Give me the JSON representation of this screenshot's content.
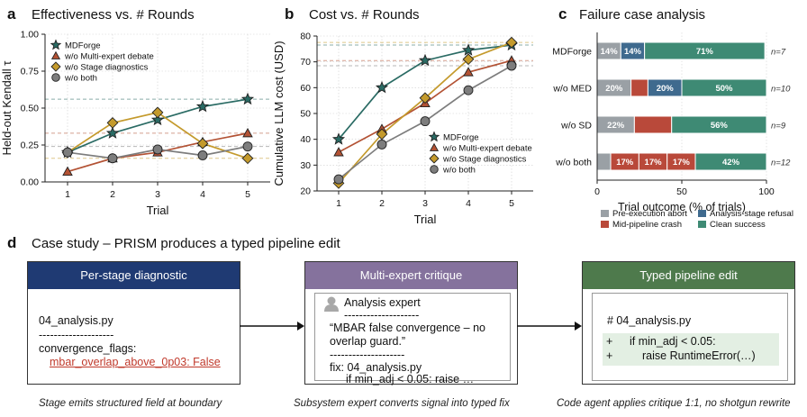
{
  "panel_labels": [
    "a",
    "b",
    "c",
    "d"
  ],
  "titles": {
    "a": "Effectiveness vs. # Rounds",
    "b": "Cost vs. # Rounds",
    "c": "Failure case analysis",
    "d": "Case study – PRISM produces a typed pipeline edit"
  },
  "colors": {
    "mdforge": "#2a6b64",
    "multi": "#b35234",
    "stage": "#c49a2c",
    "both": "#7d7d7d",
    "pre_abort": "#9aa0a5",
    "mid_crash": "#b9493a",
    "analysis_refusal": "#3f6a8e",
    "clean_success": "#3e8a74",
    "header_a": "#1f3a73",
    "header_b": "#85729d",
    "header_c": "#4e7a4c"
  },
  "chart_data": [
    {
      "type": "line",
      "title": "Effectiveness vs. # Rounds",
      "xlabel": "Trial",
      "ylabel": "Held-out Kendall τ",
      "x": [
        1,
        2,
        3,
        4,
        5
      ],
      "x_ticks": [
        "1",
        "2",
        "3",
        "4",
        "5"
      ],
      "ylim": [
        0,
        1.0
      ],
      "y_ticks": [
        "0.00",
        "0.25",
        "0.50",
        "0.75",
        "1.00"
      ],
      "grid": true,
      "legend": "top-left",
      "series": [
        {
          "name": "MDForge",
          "values": [
            0.2,
            0.33,
            0.42,
            0.51,
            0.56
          ],
          "marker": "star",
          "color": "#2a6b64",
          "ref": 0.56
        },
        {
          "name": "w/o Multi-expert debate",
          "values": [
            0.07,
            0.16,
            0.2,
            0.27,
            0.33
          ],
          "marker": "triangle",
          "color": "#b35234",
          "ref": 0.33
        },
        {
          "name": "w/o Stage diagnostics",
          "values": [
            0.2,
            0.4,
            0.47,
            0.26,
            0.16
          ],
          "marker": "diamond",
          "color": "#c49a2c",
          "ref": 0.16
        },
        {
          "name": "w/o both",
          "values": [
            0.2,
            0.16,
            0.22,
            0.18,
            0.24
          ],
          "marker": "circle",
          "color": "#7d7d7d",
          "ref": 0.24
        }
      ]
    },
    {
      "type": "line",
      "title": "Cost vs. # Rounds",
      "xlabel": "Trial",
      "ylabel": "Cumulative LLM cost (USD)",
      "x": [
        1,
        2,
        3,
        4,
        5
      ],
      "x_ticks": [
        "1",
        "2",
        "3",
        "4",
        "5"
      ],
      "ylim": [
        20,
        80
      ],
      "y_ticks": [
        "20",
        "30",
        "40",
        "50",
        "60",
        "70",
        "80"
      ],
      "grid": true,
      "legend": "bottom-right",
      "series": [
        {
          "name": "MDForge",
          "values": [
            40,
            60,
            70.5,
            74.5,
            76.5
          ],
          "marker": "star",
          "color": "#2a6b64",
          "ref": 76.5
        },
        {
          "name": "w/o Multi-expert debate",
          "values": [
            35,
            44,
            54,
            66,
            70.5
          ],
          "marker": "triangle",
          "color": "#b35234",
          "ref": 70.5
        },
        {
          "name": "w/o Stage diagnostics",
          "values": [
            23,
            42,
            56,
            71,
            77.5
          ],
          "marker": "diamond",
          "color": "#c49a2c",
          "ref": 77.5
        },
        {
          "name": "w/o both",
          "values": [
            24.5,
            38,
            47,
            59,
            68.5
          ],
          "marker": "circle",
          "color": "#7d7d7d",
          "ref": 68.5
        }
      ]
    },
    {
      "type": "bar",
      "orientation": "horizontal-stacked",
      "title": "Failure case analysis",
      "xlabel": "Trial outcome  (% of trials)",
      "xlim": [
        0,
        100
      ],
      "x_ticks": [
        "0",
        "50",
        "100"
      ],
      "categories": [
        "MDForge",
        "w/o MED",
        "w/o SD",
        "w/o both"
      ],
      "n_labels": [
        "n=7",
        "n=10",
        "n=9",
        "n=12"
      ],
      "legend": "bottom",
      "series": [
        {
          "name": "Pre-execution abort",
          "values": [
            14,
            20,
            22,
            8
          ],
          "labels": [
            "14%",
            "20%",
            "22%",
            ""
          ],
          "color": "#9aa0a5"
        },
        {
          "name": "Mid-pipeline crash",
          "values": [
            0,
            10,
            22,
            50
          ],
          "labels": [
            "",
            "",
            "",
            "17%|17%|17%"
          ],
          "color": "#b9493a"
        },
        {
          "name": "Analysis-stage refusal",
          "values": [
            14,
            20,
            0,
            0
          ],
          "labels": [
            "14%",
            "20%",
            "",
            ""
          ],
          "color": "#3f6a8e"
        },
        {
          "name": "Clean success",
          "values": [
            71,
            50,
            56,
            42
          ],
          "labels": [
            "71%",
            "50%",
            "56%",
            "42%"
          ],
          "color": "#3e8a74"
        }
      ]
    }
  ],
  "case_study": {
    "box1": {
      "header": "Per-stage diagnostic",
      "line1": "04_analysis.py",
      "divider": "--------------------",
      "line2": "convergence_flags:",
      "flag": "mbar_overlap_above_0p03: False",
      "caption": "Stage emits structured field at boundary"
    },
    "box2": {
      "header": "Multi-expert critique",
      "expert": "Analysis expert",
      "divider1": "--------------------",
      "quote1": "“MBAR false convergence – no",
      "quote2": "overlap guard.”",
      "divider2": "--------------------",
      "fix1": "fix: 04_analysis.py",
      "fix2": "if min_adj < 0.05: raise …",
      "caption": "Subsystem expert converts signal into typed fix"
    },
    "box3": {
      "header": "Typed pipeline edit",
      "line1": "# 04_analysis.py",
      "plus1": "+",
      "code1": "if min_adj < 0.05:",
      "plus2": "+",
      "code2": "raise RuntimeError(…)",
      "caption": "Code agent applies critique 1:1, no shotgun rewrite"
    }
  }
}
